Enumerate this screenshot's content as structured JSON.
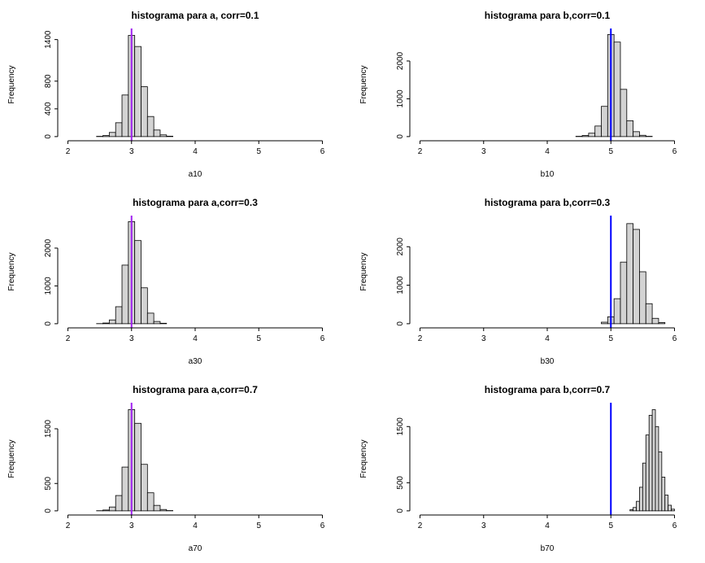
{
  "page": {
    "background": "#ffffff"
  },
  "chart_data": [
    {
      "type": "bar",
      "id": "a10",
      "title": "histograma para a, corr=0.1",
      "xlabel": "a10",
      "ylabel": "Frequency",
      "xlim": [
        2,
        6
      ],
      "xticks": [
        2,
        3,
        4,
        5,
        6
      ],
      "yticks": [
        0,
        400,
        800,
        1400
      ],
      "ylim": [
        0,
        1500
      ],
      "grid": false,
      "legend": "none",
      "bar_fill": "#d3d3d3",
      "bar_stroke": "#000000",
      "ref_line": {
        "x": 3,
        "color": "#a020f0"
      },
      "bins": {
        "start": 2.45,
        "width": 0.1
      },
      "counts": [
        4,
        15,
        60,
        200,
        600,
        1460,
        1300,
        720,
        290,
        95,
        25,
        6
      ]
    },
    {
      "type": "bar",
      "id": "b10",
      "title": "histograma para b,corr=0.1",
      "xlabel": "b10",
      "ylabel": "Frequency",
      "xlim": [
        2,
        6
      ],
      "xticks": [
        2,
        3,
        4,
        5,
        6
      ],
      "yticks": [
        0,
        1000,
        2000
      ],
      "ylim": [
        0,
        2750
      ],
      "grid": false,
      "legend": "none",
      "bar_fill": "#d3d3d3",
      "bar_stroke": "#000000",
      "ref_line": {
        "x": 5,
        "color": "#0000ff"
      },
      "bins": {
        "start": 4.45,
        "width": 0.1
      },
      "counts": [
        8,
        30,
        90,
        280,
        800,
        2700,
        2500,
        1250,
        420,
        130,
        35,
        8
      ]
    },
    {
      "type": "bar",
      "id": "a30",
      "title": "histograma para a,corr=0.3",
      "xlabel": "a30",
      "ylabel": "Frequency",
      "xlim": [
        2,
        6
      ],
      "xticks": [
        2,
        3,
        4,
        5,
        6
      ],
      "yticks": [
        0,
        1000,
        2000
      ],
      "ylim": [
        0,
        2750
      ],
      "grid": false,
      "legend": "none",
      "bar_fill": "#d3d3d3",
      "bar_stroke": "#000000",
      "ref_line": {
        "x": 3,
        "color": "#a020f0"
      },
      "bins": {
        "start": 2.45,
        "width": 0.1
      },
      "counts": [
        3,
        18,
        100,
        450,
        1550,
        2700,
        2200,
        950,
        280,
        60,
        12
      ]
    },
    {
      "type": "bar",
      "id": "b30",
      "title": "histograma para b,corr=0.3",
      "xlabel": "b30",
      "ylabel": "Frequency",
      "xlim": [
        2,
        6
      ],
      "xticks": [
        2,
        3,
        4,
        5,
        6
      ],
      "yticks": [
        0,
        1000,
        2000
      ],
      "ylim": [
        0,
        2700
      ],
      "grid": false,
      "legend": "none",
      "bar_fill": "#d3d3d3",
      "bar_stroke": "#000000",
      "ref_line": {
        "x": 5,
        "color": "#0000ff"
      },
      "bins": {
        "start": 4.85,
        "width": 0.1
      },
      "counts": [
        40,
        180,
        650,
        1600,
        2600,
        2450,
        1350,
        520,
        140,
        30
      ]
    },
    {
      "type": "bar",
      "id": "a70",
      "title": "histograma para a,corr=0.7",
      "xlabel": "a70",
      "ylabel": "Frequency",
      "xlim": [
        2,
        6
      ],
      "xticks": [
        2,
        3,
        4,
        5,
        6
      ],
      "yticks": [
        0,
        500,
        1500
      ],
      "ylim": [
        0,
        1900
      ],
      "grid": false,
      "legend": "none",
      "bar_fill": "#d3d3d3",
      "bar_stroke": "#000000",
      "ref_line": {
        "x": 3,
        "color": "#a020f0"
      },
      "bins": {
        "start": 2.45,
        "width": 0.1
      },
      "counts": [
        3,
        15,
        70,
        280,
        800,
        1850,
        1600,
        850,
        330,
        100,
        25,
        5
      ]
    },
    {
      "type": "bar",
      "id": "b70",
      "title": "histograma para b,corr=0.7",
      "xlabel": "b70",
      "ylabel": "Frequency",
      "xlim": [
        2,
        6
      ],
      "xticks": [
        2,
        3,
        4,
        5,
        6
      ],
      "yticks": [
        0,
        500,
        1500
      ],
      "ylim": [
        0,
        1850
      ],
      "grid": false,
      "legend": "none",
      "bar_fill": "#d3d3d3",
      "bar_stroke": "#000000",
      "ref_line": {
        "x": 5,
        "color": "#0000ff"
      },
      "bins": {
        "start": 5.3,
        "width": 0.05
      },
      "counts": [
        20,
        60,
        170,
        420,
        850,
        1350,
        1700,
        1800,
        1500,
        1050,
        600,
        280,
        100,
        30
      ]
    }
  ]
}
